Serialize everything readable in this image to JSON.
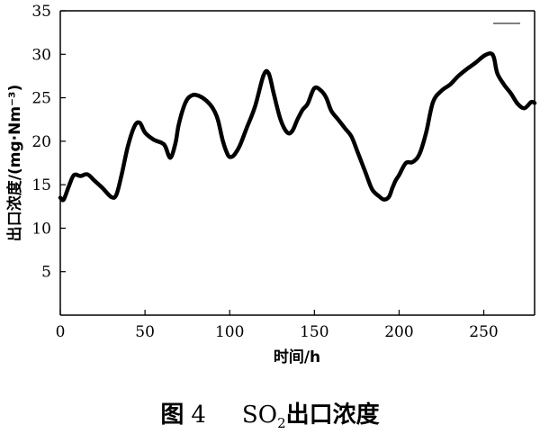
{
  "chart_data": {
    "type": "line",
    "xlabel": "时间/h",
    "ylabel": "出口浓度/(mg·Nm⁻³)",
    "xlim": [
      0,
      280
    ],
    "ylim": [
      0,
      35
    ],
    "xticks": [
      0,
      50,
      100,
      150,
      200,
      250
    ],
    "yticks": [
      5,
      10,
      15,
      20,
      25,
      30,
      35
    ],
    "x_tick_labels": [
      "0",
      "50",
      "100",
      "150",
      "200",
      "250"
    ],
    "y_tick_labels": [
      "5",
      "10",
      "15",
      "20",
      "25",
      "30",
      "35"
    ],
    "grid": false,
    "series": [
      {
        "x": [
          0,
          2,
          5,
          8,
          12,
          16,
          20,
          25,
          30,
          33,
          36,
          40,
          44,
          47,
          50,
          55,
          60,
          62,
          65,
          68,
          70,
          74,
          78,
          82,
          86,
          90,
          93,
          96,
          99,
          101,
          103,
          106,
          110,
          115,
          120,
          123,
          126,
          130,
          134,
          137,
          140,
          143,
          146,
          150,
          154,
          157,
          160,
          164,
          168,
          172,
          176,
          180,
          184,
          188,
          191,
          194,
          196,
          198,
          200,
          204,
          208,
          212,
          216,
          220,
          225,
          230,
          235,
          240,
          245,
          250,
          254,
          256,
          258,
          262,
          266,
          270,
          274,
          278,
          280
        ],
        "y": [
          13.5,
          13.3,
          14.8,
          16.1,
          16.0,
          16.2,
          15.5,
          14.6,
          13.6,
          13.8,
          16.0,
          19.5,
          21.8,
          22.1,
          21.0,
          20.2,
          19.8,
          19.4,
          18.1,
          19.8,
          22.0,
          24.5,
          25.3,
          25.2,
          24.7,
          23.8,
          22.5,
          20.0,
          18.4,
          18.2,
          18.5,
          19.5,
          21.5,
          24.0,
          27.6,
          27.8,
          25.5,
          22.5,
          21.0,
          21.2,
          22.5,
          23.6,
          24.3,
          26.1,
          25.8,
          25.0,
          23.5,
          22.5,
          21.5,
          20.5,
          18.5,
          16.5,
          14.5,
          13.7,
          13.3,
          13.6,
          14.6,
          15.5,
          16.1,
          17.5,
          17.6,
          18.5,
          21.0,
          24.5,
          25.8,
          26.5,
          27.5,
          28.3,
          29.0,
          29.8,
          30.1,
          29.6,
          27.8,
          26.5,
          25.5,
          24.3,
          23.8,
          24.5,
          24.4
        ]
      }
    ]
  },
  "caption": {
    "figure_label": "图",
    "figure_number": "4",
    "title_formula": "SO",
    "title_subscript": "2",
    "title_rest": "出口浓度"
  }
}
